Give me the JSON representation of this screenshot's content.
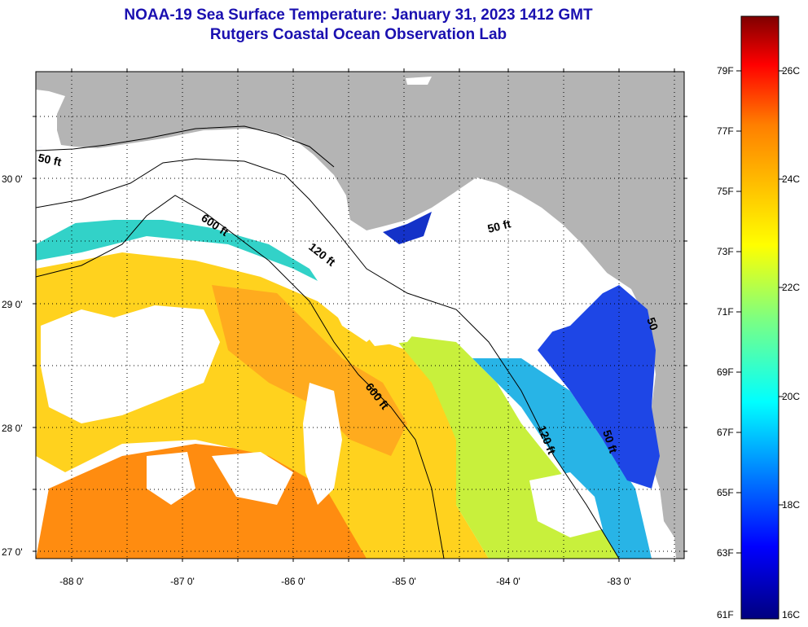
{
  "header": {
    "title": "NOAA-19 Sea Surface Temperature:  January 31, 2023 1412 GMT",
    "subtitle": "Rutgers Coastal Ocean Observation Lab"
  },
  "axes": {
    "latitude_labels": [
      "30 0'",
      "29 0'",
      "28 0'",
      "27 0'"
    ],
    "longitude_labels": [
      "-88 0'",
      "-87 0'",
      "-86 0'",
      "-85 0'",
      "-84 0'",
      "-83 0'"
    ]
  },
  "contours": {
    "labels": [
      "50 ft",
      "600 ft",
      "120 ft",
      "50 ft",
      "600 ft",
      "120 ft",
      "50 ft",
      "50"
    ]
  },
  "colorbar": {
    "fahrenheit_labels": [
      "79F",
      "77F",
      "75F",
      "73F",
      "71F",
      "69F",
      "67F",
      "65F",
      "63F",
      "61F"
    ],
    "celsius_labels": [
      "26C",
      "24C",
      "22C",
      "20C",
      "18C",
      "16C"
    ],
    "gradient_colors": [
      "#00007f",
      "#0000ff",
      "#007fff",
      "#00ffff",
      "#7fff7f",
      "#ffff00",
      "#ff7f00",
      "#ff0000",
      "#7f0000"
    ]
  },
  "colors": {
    "title": "#1a10b0",
    "land": "#b4b4b4",
    "cloud": "#ffffff"
  }
}
